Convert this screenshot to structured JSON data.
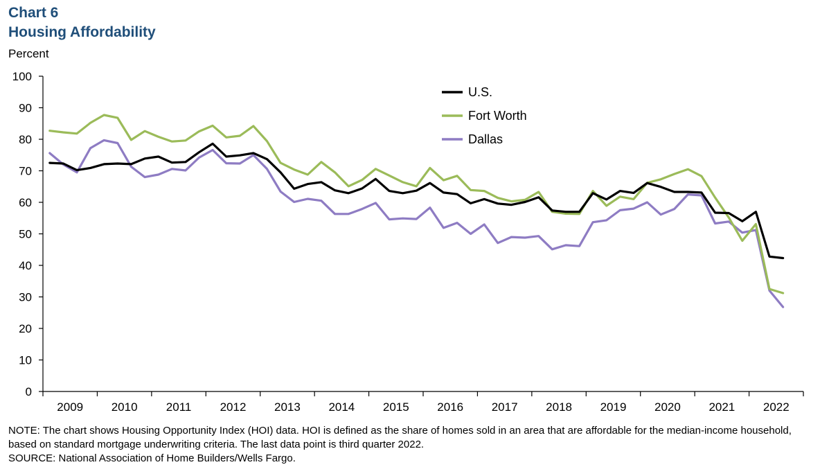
{
  "chart_title": "Chart 6",
  "chart_subtitle": "Housing Affordability",
  "chart_data": {
    "type": "line",
    "title": "Housing Affordability",
    "xlabel": "",
    "ylabel": "Percent",
    "ylim": [
      0,
      100
    ],
    "yticks": [
      0,
      10,
      20,
      30,
      40,
      50,
      60,
      70,
      80,
      90,
      100
    ],
    "xticks": [
      "2009",
      "2010",
      "2011",
      "2012",
      "2013",
      "2014",
      "2015",
      "2016",
      "2017",
      "2018",
      "2019",
      "2020",
      "2021",
      "2022"
    ],
    "x_start": "2009 Q1",
    "x_end": "2022 Q3",
    "legend_position": "top-center",
    "grid": false,
    "series": [
      {
        "name": "U.S.",
        "color": "#000000",
        "values": [
          72.5,
          72.3,
          70.2,
          70.9,
          72.1,
          72.3,
          72.1,
          73.9,
          74.5,
          72.6,
          72.8,
          75.9,
          78.6,
          74.5,
          74.9,
          75.6,
          73.7,
          69.5,
          64.3,
          65.8,
          66.4,
          63.8,
          62.9,
          64.4,
          67.4,
          63.6,
          62.9,
          63.7,
          66.1,
          63.1,
          62.6,
          59.7,
          61.0,
          59.6,
          59.2,
          60.1,
          61.6,
          57.4,
          57.0,
          57.0,
          62.9,
          60.9,
          63.6,
          63.0,
          66.1,
          64.9,
          63.3,
          63.3,
          63.1,
          56.7,
          56.6,
          54.0,
          57.0,
          42.8,
          42.3
        ]
      },
      {
        "name": "Fort Worth",
        "color": "#9bbb59",
        "values": [
          82.7,
          82.2,
          81.8,
          85.2,
          87.7,
          86.8,
          79.8,
          82.6,
          80.8,
          79.3,
          79.6,
          82.5,
          84.3,
          80.6,
          81.1,
          84.2,
          79.4,
          72.5,
          70.4,
          68.8,
          72.8,
          69.5,
          65.1,
          67.1,
          70.6,
          68.5,
          66.4,
          65.1,
          70.9,
          67.0,
          68.4,
          63.9,
          63.6,
          61.4,
          60.3,
          60.8,
          63.3,
          57.0,
          56.4,
          56.3,
          63.6,
          58.9,
          61.8,
          61.0,
          66.2,
          67.3,
          69.0,
          70.5,
          68.3,
          61.5,
          55.2,
          47.8,
          53.1,
          32.5,
          31.2
        ]
      },
      {
        "name": "Dallas",
        "color": "#8e7cc3",
        "values": [
          75.6,
          72.0,
          69.5,
          77.2,
          79.7,
          78.8,
          71.3,
          68.0,
          68.8,
          70.6,
          70.1,
          74.2,
          76.6,
          72.4,
          72.3,
          75.0,
          70.6,
          63.4,
          60.1,
          61.1,
          60.5,
          56.3,
          56.3,
          57.9,
          59.8,
          54.6,
          54.9,
          54.7,
          58.3,
          51.9,
          53.5,
          50.0,
          53.0,
          47.1,
          49.0,
          48.8,
          49.3,
          45.1,
          46.4,
          46.1,
          53.7,
          54.3,
          57.5,
          58.0,
          60.0,
          56.1,
          57.9,
          62.5,
          62.2,
          53.3,
          53.9,
          50.4,
          51.2,
          32.0,
          26.8
        ]
      }
    ]
  },
  "notes": {
    "note": "NOTE: The chart shows Housing Opportunity Index (HOI) data. HOI is defined as the share of homes sold in an area that are affordable for the median-income household, based on standard mortgage underwriting criteria. The last data point is third quarter 2022.",
    "source": "SOURCE: National Association of Home Builders/Wells Fargo."
  }
}
